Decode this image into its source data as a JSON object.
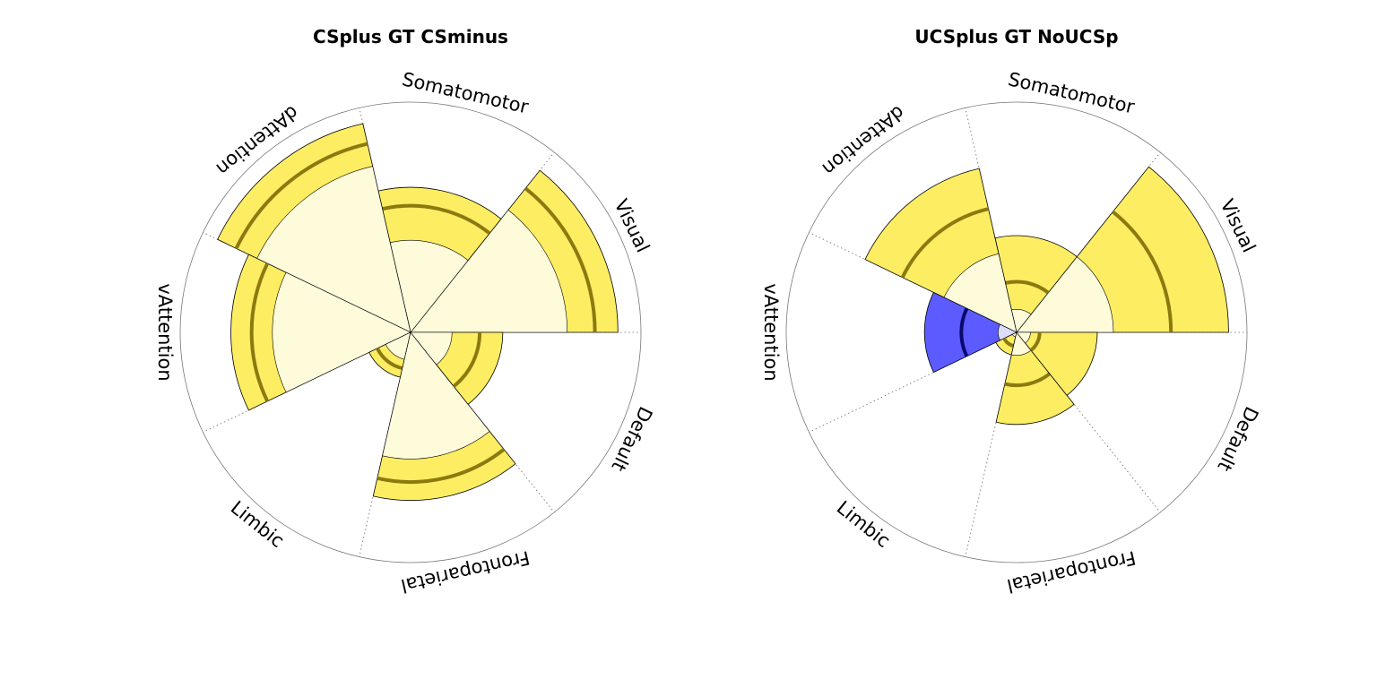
{
  "chart_data": [
    {
      "type": "polar-wedge",
      "title": "CSplus GT CSminus",
      "categories": [
        "Visual",
        "Somatomotor",
        "dAttention",
        "vAttention",
        "Limbic",
        "Frontoparietal",
        "Default"
      ],
      "rmax": 1.0,
      "sectors": [
        {
          "category": "Visual",
          "value": 0.9,
          "inner": 0.68,
          "line": 0.8
        },
        {
          "category": "Somatomotor",
          "value": 0.63,
          "inner": 0.4,
          "line": 0.55
        },
        {
          "category": "dAttention",
          "value": 0.93,
          "inner": 0.74,
          "line": 0.84
        },
        {
          "category": "vAttention",
          "value": 0.78,
          "inner": 0.6,
          "line": 0.69
        },
        {
          "category": "Limbic",
          "value": 0.2,
          "inner": 0.12,
          "line": 0.16
        },
        {
          "category": "Frontoparietal",
          "value": 0.73,
          "inner": 0.55,
          "line": 0.65
        },
        {
          "category": "Default",
          "value": 0.4,
          "inner": 0.18,
          "line": 0.3
        }
      ]
    },
    {
      "type": "polar-wedge",
      "title": "UCSplus GT NoUCSp",
      "categories": [
        "Visual",
        "Somatomotor",
        "dAttention",
        "vAttention",
        "Limbic",
        "Frontoparietal",
        "Default"
      ],
      "rmax": 1.0,
      "sectors": [
        {
          "category": "Visual",
          "value": 0.92,
          "inner": 0.42,
          "line": 0.67,
          "color": "yellow"
        },
        {
          "category": "Somatomotor",
          "value": 0.42,
          "inner": 0.1,
          "line": 0.22,
          "color": "yellow"
        },
        {
          "category": "dAttention",
          "value": 0.73,
          "inner": 0.35,
          "line": 0.55,
          "color": "yellow"
        },
        {
          "category": "vAttention",
          "value": 0.4,
          "inner": 0.08,
          "line": 0.24,
          "color": "blue"
        },
        {
          "category": "Limbic",
          "value": 0.1,
          "inner": 0.02,
          "line": 0.06,
          "color": "yellow"
        },
        {
          "category": "Frontoparietal",
          "value": 0.4,
          "inner": 0.1,
          "line": 0.23,
          "color": "yellow"
        },
        {
          "category": "Default",
          "value": 0.35,
          "inner": 0.06,
          "line": 0.1,
          "color": "yellow"
        }
      ]
    }
  ],
  "colors": {
    "yellow_outer": "#fded63",
    "yellow_inner": "#fefbdb",
    "yellow_line": "#8a7a10",
    "blue_outer": "#5b5bff",
    "blue_inner": "#dcdcff",
    "blue_line": "#0a0a6e",
    "spoke": "#666666",
    "circle": "#777777"
  }
}
